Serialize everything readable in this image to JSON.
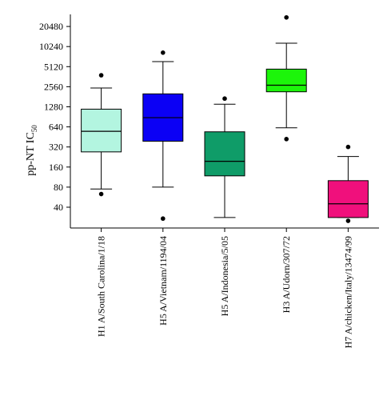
{
  "chart_data": {
    "type": "box",
    "ylabel": "pp-NT IC",
    "ylabel_sub": "50",
    "y_scale": "log2",
    "ylim": [
      20,
      30000
    ],
    "y_ticks": [
      40,
      80,
      160,
      320,
      640,
      1280,
      2560,
      5120,
      10240,
      20480
    ],
    "categories": [
      "H1 A/South Carolina/1/18",
      "H5 A/Vietnam/1194/04",
      "H5 A/Indonesia/5/05",
      "H3 A/Udorn/307/72",
      "H7 A/chicken/Italy/13474/99"
    ],
    "boxes": [
      {
        "color": "#b3f5e0",
        "whisker_low": 75,
        "q1": 270,
        "median": 550,
        "q3": 1180,
        "whisker_high": 2450,
        "outliers": [
          63,
          3800
        ]
      },
      {
        "color": "#0b00f5",
        "whisker_low": 80,
        "q1": 390,
        "median": 880,
        "q3": 2000,
        "whisker_high": 6100,
        "outliers": [
          27,
          8300
        ]
      },
      {
        "color": "#0f9c68",
        "whisker_low": 28,
        "q1": 118,
        "median": 195,
        "q3": 540,
        "whisker_high": 1400,
        "outliers": [
          1700
        ]
      },
      {
        "color": "#1cf50a",
        "whisker_low": 620,
        "q1": 2150,
        "median": 2700,
        "q3": 4700,
        "whisker_high": 11500,
        "outliers": [
          420,
          28000
        ]
      },
      {
        "color": "#f0107c",
        "whisker_low": 28,
        "q1": 28,
        "median": 45,
        "q3": 100,
        "whisker_high": 230,
        "outliers": [
          25,
          320
        ]
      }
    ]
  }
}
